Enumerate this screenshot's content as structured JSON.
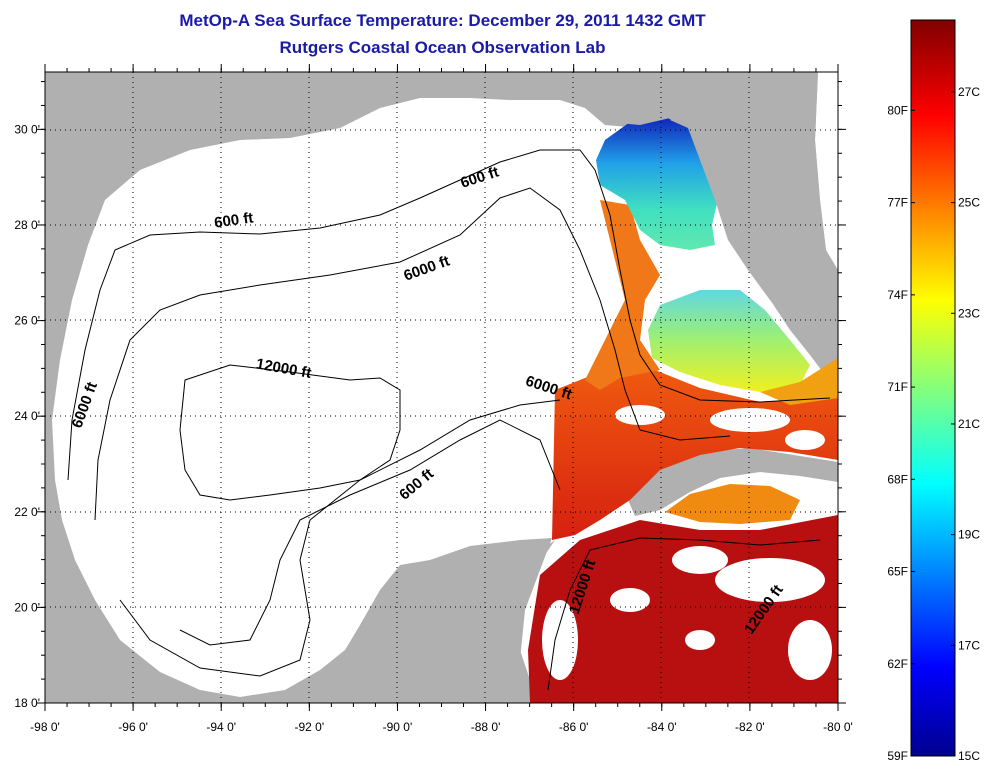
{
  "title": {
    "line1": "MetOp-A Sea Surface Temperature:  December 29, 2011 1432 GMT",
    "line2": "Rutgers Coastal Ocean Observation Lab"
  },
  "axes": {
    "lon_ticks": [
      "-98 0'",
      "-96 0'",
      "-94 0'",
      "-92 0'",
      "-90 0'",
      "-88 0'",
      "-86 0'",
      "-84 0'",
      "-82 0'",
      "-80 0'"
    ],
    "lat_ticks": [
      "30 0'",
      "28 0'",
      "26 0'",
      "24 0'",
      "22 0'",
      "20 0'",
      "18 0'"
    ],
    "lon_values": [
      -98,
      -96,
      -94,
      -92,
      -90,
      -88,
      -86,
      -84,
      -82,
      -80
    ],
    "lat_values": [
      30,
      28,
      26,
      24,
      22,
      20,
      18
    ],
    "lon_range": [
      -98,
      -80
    ],
    "lat_range": [
      18,
      31.2
    ],
    "grid": "dotted"
  },
  "contour_labels": [
    {
      "text": "600 ft",
      "lon": -93.7,
      "lat": 28.0,
      "angle": -8
    },
    {
      "text": "600 ft",
      "lon": -88.1,
      "lat": 28.9,
      "angle": -18
    },
    {
      "text": "6000 ft",
      "lon": -89.3,
      "lat": 27.0,
      "angle": -20
    },
    {
      "text": "6000 ft",
      "lon": -97.0,
      "lat": 24.2,
      "angle": -70
    },
    {
      "text": "12000 ft",
      "lon": -92.6,
      "lat": 24.9,
      "angle": 10
    },
    {
      "text": "6000 ft",
      "lon": -86.6,
      "lat": 24.5,
      "angle": 18
    },
    {
      "text": "600 ft",
      "lon": -89.5,
      "lat": 22.5,
      "angle": -40
    },
    {
      "text": "12000 ft",
      "lon": -85.7,
      "lat": 20.4,
      "angle": -72
    },
    {
      "text": "12000 ft",
      "lon": -81.6,
      "lat": 19.9,
      "angle": -55
    }
  ],
  "colorbar": {
    "celsius_labels": [
      "27C",
      "25C",
      "23C",
      "21C",
      "19C",
      "17C",
      "15C"
    ],
    "celsius_values": [
      27,
      25,
      23,
      21,
      19,
      17,
      15
    ],
    "fahrenheit_labels": [
      "80F",
      "77F",
      "74F",
      "71F",
      "68F",
      "65F",
      "62F",
      "59F"
    ],
    "fahrenheit_values": [
      80,
      77,
      74,
      71,
      68,
      65,
      62,
      59
    ],
    "range_c": [
      15,
      28.3
    ]
  },
  "colors": {
    "land": "#b0b0b0",
    "ocean": "#ffffff",
    "title": "#1a1aa8"
  }
}
